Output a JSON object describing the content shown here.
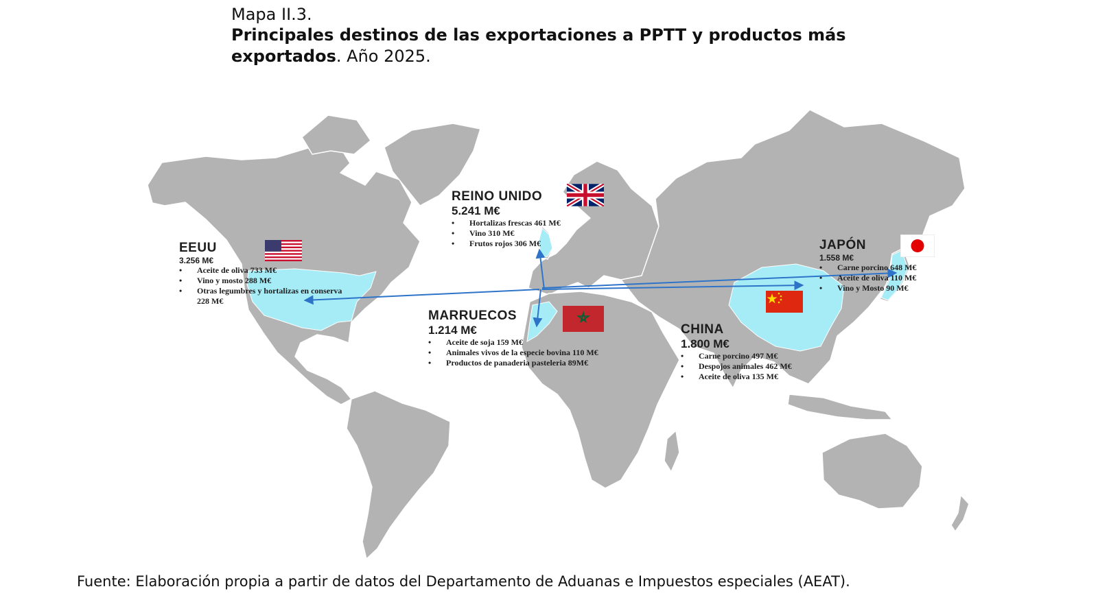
{
  "header": {
    "map_number": "Mapa II.3.",
    "title_bold": "Principales destinos de las exportaciones a PPTT y productos más exportados",
    "title_rest": ". Año 2025."
  },
  "source": "Fuente: Elaboración propia a partir de datos del Departamento de Aduanas e Impuestos especiales (AEAT).",
  "colors": {
    "land": "#b3b3b3",
    "highlight": "#a6ecf7",
    "arrow": "#2d74c9",
    "text": "#1d1d1d"
  },
  "countries": {
    "eeuu": {
      "name": "EEUU",
      "total": "3.256 M€",
      "products": [
        "Aceite de oliva 733 M€",
        "Vino y mosto 288 M€",
        "Otras legumbres y hortalizas en conserva 228 M€"
      ],
      "flag_icon": "usa-flag-icon"
    },
    "reino_unido": {
      "name": "REINO UNIDO",
      "total": "5.241 M€",
      "products": [
        "Hortalizas frescas 461 M€",
        "Vino 310 M€",
        "Frutos rojos 306 M€"
      ],
      "flag_icon": "uk-flag-icon"
    },
    "marruecos": {
      "name": "MARRUECOS",
      "total": "1.214 M€",
      "products": [
        "Aceite de soja 159 M€",
        "Animales vivos de la especie bovina 110 M€",
        "Productos de panaderia pasteleria 89M€"
      ],
      "flag_icon": "morocco-flag-icon"
    },
    "china": {
      "name": "CHINA",
      "total": "1.800 M€",
      "products": [
        "Carne porcino 497 M€",
        "Despojos animales 462 M€",
        "Aceite de oliva 135 M€"
      ],
      "flag_icon": "china-flag-icon"
    },
    "japon": {
      "name": "JAPÓN",
      "total": "1.558 M€",
      "products": [
        "Carne porcino 648 M€",
        "Aceite de oliva 110 M€",
        "Vino y Mosto 90 M€"
      ],
      "flag_icon": "japan-flag-icon"
    }
  },
  "routes": {
    "origin": "spain",
    "destinations": [
      "eeuu",
      "reino_unido",
      "marruecos",
      "china",
      "japon"
    ]
  }
}
